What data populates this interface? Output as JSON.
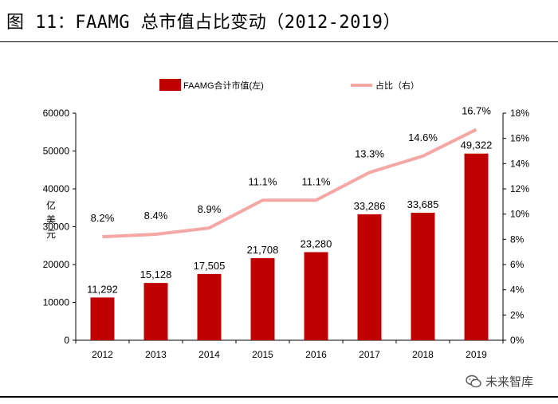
{
  "header": {
    "title": "图 11：FAAMG 总市值占比变动（2012-2019）"
  },
  "watermark": {
    "text": "未来智库",
    "icon": "wechat-icon"
  },
  "colors": {
    "bar": "#c00000",
    "line": "#f4a7a3",
    "axis": "#000000"
  },
  "chart_data": {
    "type": "bar+line",
    "categories": [
      "2012",
      "2013",
      "2014",
      "2015",
      "2016",
      "2017",
      "2018",
      "2019"
    ],
    "series": [
      {
        "name": "FAAMG合计市值(左)",
        "type": "bar",
        "axis": "left",
        "values": [
          11292,
          15128,
          17505,
          21708,
          23280,
          33286,
          33685,
          49322
        ],
        "labels": [
          "11,292",
          "15,128",
          "17,505",
          "21,708",
          "23,280",
          "33,286",
          "33,685",
          "49,322"
        ]
      },
      {
        "name": "占比（右）",
        "type": "line",
        "axis": "right",
        "values": [
          8.2,
          8.4,
          8.9,
          11.1,
          11.1,
          13.3,
          14.6,
          16.7
        ],
        "labels": [
          "8.2%",
          "8.4%",
          "8.9%",
          "11.1%",
          "11.1%",
          "13.3%",
          "14.6%",
          "16.7%"
        ]
      }
    ],
    "ylabel": "亿美元",
    "ylim": [
      0,
      60000
    ],
    "yticks": [
      "0",
      "10000",
      "20000",
      "30000",
      "40000",
      "50000",
      "60000"
    ],
    "y2lim": [
      0,
      18
    ],
    "y2ticks": [
      "0%",
      "2%",
      "4%",
      "6%",
      "8%",
      "10%",
      "12%",
      "14%",
      "16%",
      "18%"
    ],
    "legend_position": "top",
    "grid": false
  }
}
